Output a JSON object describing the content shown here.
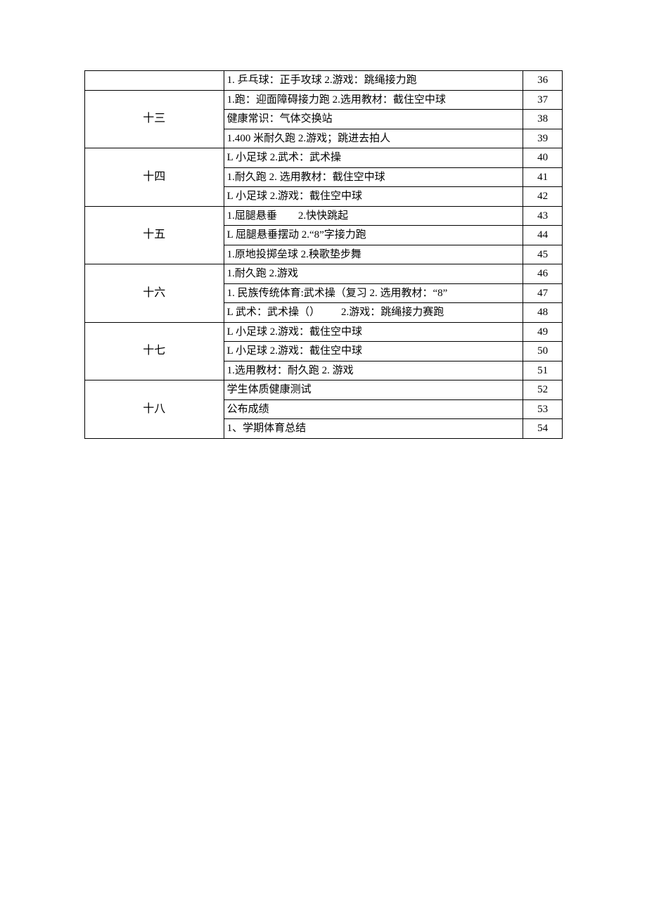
{
  "table": {
    "columns": {
      "week_width": 195,
      "content_width": 420,
      "num_width": 55
    },
    "groups": [
      {
        "week_label": "",
        "rows": [
          {
            "content": "1. 乒乓球：正手攻球 2.游戏：跳绳接力跑",
            "num": "36"
          }
        ]
      },
      {
        "week_label": "十三",
        "rows": [
          {
            "content": "1.跑：迎面障碍接力跑 2.选用教材：截住空中球",
            "num": "37"
          },
          {
            "content": "健康常识：气体交换站",
            "num": "38"
          },
          {
            "content": "1.400 米耐久跑 2.游戏；跳进去拍人",
            "num": "39"
          }
        ]
      },
      {
        "week_label": "十四",
        "rows": [
          {
            "content": "L 小足球 2.武术：武术操",
            "num": "40"
          },
          {
            "content": "1.耐久跑 2. 选用教材：截住空中球",
            "num": "41"
          },
          {
            "content": "L 小足球 2.游戏：截住空中球",
            "num": "42"
          }
        ]
      },
      {
        "week_label": "十五",
        "rows": [
          {
            "content": "1.屈腿悬垂  2.快快跳起",
            "num": "43"
          },
          {
            "content": "L 屈腿悬垂摆动 2.“8”字接力跑",
            "num": "44"
          },
          {
            "content": "1.原地投掷垒球 2.秧歌垫步舞",
            "num": "45"
          }
        ]
      },
      {
        "week_label": "十六",
        "rows": [
          {
            "content": "1.耐久跑 2.游戏",
            "num": "46"
          },
          {
            "content": "1. 民族传统体育:武术操（复习 2. 选用教材：“8”",
            "num": "47"
          },
          {
            "content": "L 武术：武术操（）  2.游戏：跳绳接力赛跑",
            "num": "48"
          }
        ]
      },
      {
        "week_label": "十七",
        "rows": [
          {
            "content": "L 小足球 2.游戏：截住空中球",
            "num": "49"
          },
          {
            "content": "L 小足球 2.游戏：截住空中球",
            "num": "50"
          },
          {
            "content": "1.选用教材：耐久跑 2. 游戏",
            "num": "51"
          }
        ]
      },
      {
        "week_label": "十八",
        "rows": [
          {
            "content": "学生体质健康测试",
            "num": "52"
          },
          {
            "content": "公布成绩",
            "num": "53"
          },
          {
            "content": "1、学期体育总结",
            "num": "54"
          }
        ]
      }
    ]
  }
}
